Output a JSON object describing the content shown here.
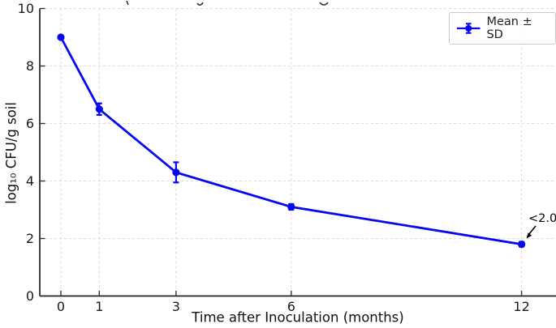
{
  "chart_data": {
    "type": "line",
    "title_clipped": true,
    "x": [
      0,
      1,
      3,
      6,
      12
    ],
    "series": [
      {
        "name": "Mean ± SD",
        "values": [
          9.0,
          6.5,
          4.3,
          3.1,
          1.8
        ],
        "sd": [
          0.05,
          0.2,
          0.35,
          0.1,
          0.08
        ]
      }
    ],
    "xlabel": "Time after Inoculation (months)",
    "ylabel": "log₁₀ CFU/g soil",
    "xticks": [
      "0",
      "1",
      "3",
      "6",
      "12"
    ],
    "xtick_values": [
      0,
      1,
      3,
      6,
      12
    ],
    "yticks": [
      "0",
      "2",
      "4",
      "6",
      "8",
      "10"
    ],
    "ytick_values": [
      0,
      2,
      4,
      6,
      8,
      10
    ],
    "ylim": [
      0,
      10
    ],
    "xlim": [
      -0.6,
      12.9
    ],
    "grid": true,
    "grid_style": "dashed",
    "legend": {
      "label": "Mean ± SD",
      "position": "upper right"
    },
    "annotation": {
      "text": "<2.0",
      "target_x": 12,
      "target_y": 1.8
    },
    "colors": {
      "line": "#0808F0",
      "grid": "#d9d9d9",
      "axis": "#222222",
      "tick_text": "#1a1a1a",
      "annotation": "#000000"
    }
  }
}
